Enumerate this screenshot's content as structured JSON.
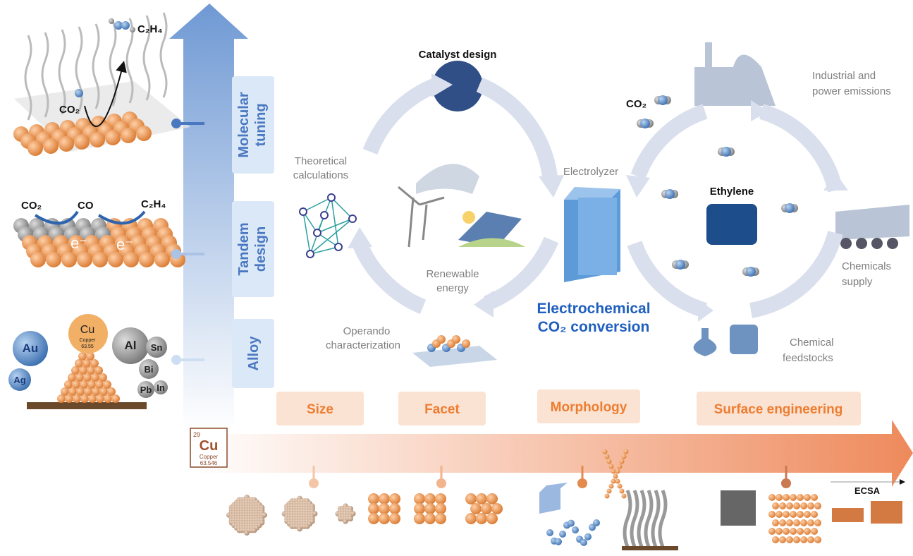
{
  "left_panels": {
    "molecular": {
      "co2": "CO₂",
      "product": "C₂H₄"
    },
    "tandem": {
      "co2": "CO₂",
      "co": "CO",
      "product": "C₂H₄",
      "electron_1": "e⁻",
      "electron_2": "e⁻"
    },
    "alloy": {
      "elements": [
        "Au",
        "Ag",
        "Al",
        "Sn",
        "Bi",
        "Pb",
        "In"
      ],
      "cu_symbol": "Cu",
      "cu_name": "Copper",
      "cu_mass": "63.55"
    }
  },
  "vertical_axis": {
    "labels": [
      [
        "Molecular",
        "tuning"
      ],
      [
        "Tandem",
        "design"
      ],
      [
        "Alloy"
      ]
    ]
  },
  "cycle_left": {
    "catalyst_design": "Catalyst design",
    "theoretical": [
      "Theoretical",
      "calculations"
    ],
    "renewable": [
      "Renewable",
      "energy"
    ],
    "operando": [
      "Operando",
      "characterization"
    ]
  },
  "electrolyzer": "Electrolyzer",
  "center_title": [
    "Electrochemical",
    "CO₂ conversion"
  ],
  "cycle_right": {
    "emissions": [
      "Industrial and",
      "power emissions"
    ],
    "co2": "CO₂",
    "ethylene": "Ethylene",
    "supply": [
      "Chemicals",
      "supply"
    ],
    "feedstocks": [
      "Chemical",
      "feedstocks"
    ]
  },
  "horizontal_axis": {
    "labels": [
      "Size",
      "Facet",
      "Morphology",
      "Surface engineering"
    ],
    "element": {
      "number": "29",
      "symbol": "Cu",
      "name": "Copper",
      "mass": "63.546"
    },
    "ecsa": "ECSA"
  }
}
